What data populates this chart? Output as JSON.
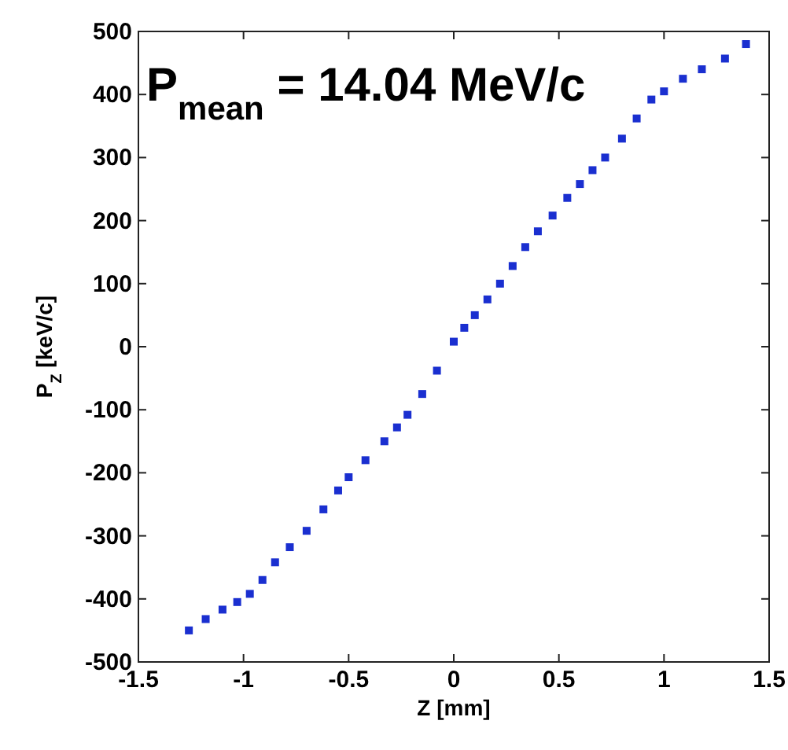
{
  "chart_data": {
    "type": "scatter",
    "title": "P$_{mean}$ = 14.04 MeV/c",
    "xlabel": "Z [mm]",
    "ylabel": "P$_{Z}$ [keV/c]",
    "series": [
      {
        "color": "#1a2fd0",
        "x": [
          -1.26,
          -1.18,
          -1.1,
          -1.03,
          -0.97,
          -0.91,
          -0.85,
          -0.78,
          -0.7,
          -0.62,
          -0.55,
          -0.5,
          -0.42,
          -0.33,
          -0.27,
          -0.22,
          -0.15,
          -0.08,
          0,
          0.05,
          0.1,
          0.16,
          0.22,
          0.28,
          0.34,
          0.4,
          0.47,
          0.54,
          0.6,
          0.66,
          0.72,
          0.8,
          0.87,
          0.94,
          1.0,
          1.09,
          1.18,
          1.29,
          1.39
        ],
        "values": [
          -450,
          -432,
          -417,
          -405,
          -392,
          -370,
          -342,
          -318,
          -292,
          -258,
          -228,
          -207,
          -180,
          -150,
          -128,
          -108,
          -75,
          -38,
          8,
          30,
          50,
          75,
          100,
          128,
          158,
          183,
          208,
          236,
          258,
          280,
          300,
          330,
          362,
          392,
          405,
          425,
          440,
          457,
          480
        ]
      }
    ],
    "xlim": [
      -1.5,
      1.5
    ],
    "xticks": [
      {
        "value": -1.5,
        "label": "-1.5"
      },
      -1,
      {
        "value": -0.5,
        "label": "-0.5"
      },
      0,
      0.5,
      1,
      1.5
    ],
    "ylim": [
      -500,
      500
    ],
    "yticks": [
      -500,
      -400,
      -300,
      -200,
      -100,
      0,
      100,
      200,
      300,
      400,
      500
    ],
    "grid": false,
    "marker": "square"
  }
}
